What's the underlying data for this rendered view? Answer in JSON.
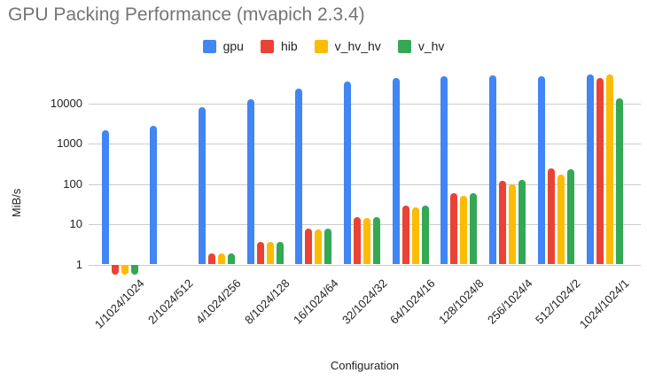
{
  "chart_data": {
    "type": "bar",
    "title": "GPU Packing Performance (mvapich 2.3.4)",
    "xlabel": "Configuration",
    "ylabel": "MiB/s",
    "y_scale": "log",
    "y_ticks": [
      1,
      10,
      100,
      1000,
      10000
    ],
    "ylim": [
      0.4,
      60000
    ],
    "grid": true,
    "legend_position": "top",
    "categories": [
      "1/1024/1024",
      "2/1024/512",
      "4/1024/256",
      "8/1024/128",
      "16/1024/64",
      "32/1024/32",
      "64/1024/16",
      "128/1024/8",
      "256/1024/4",
      "512/1024/2",
      "1024/1024/1"
    ],
    "series": [
      {
        "name": "gpu",
        "color": "#4285F4",
        "values": [
          2200,
          2800,
          8300,
          13000,
          24000,
          35000,
          44000,
          48000,
          50000,
          48000,
          53000
        ]
      },
      {
        "name": "hib",
        "color": "#EA4335",
        "values": [
          0.55,
          1,
          1.9,
          3.7,
          7.9,
          15,
          29,
          60,
          120,
          240,
          43000
        ]
      },
      {
        "name": "v_hv_hv",
        "color": "#FBBC04",
        "values": [
          0.55,
          1,
          1.85,
          3.6,
          7.6,
          14,
          27,
          52,
          100,
          170,
          53000
        ]
      },
      {
        "name": "v_hv",
        "color": "#34A853",
        "values": [
          0.55,
          1,
          1.9,
          3.7,
          7.9,
          15,
          29,
          60,
          125,
          230,
          13500
        ]
      }
    ],
    "title_color": "#757575",
    "gridline_color": "#cccccc"
  }
}
